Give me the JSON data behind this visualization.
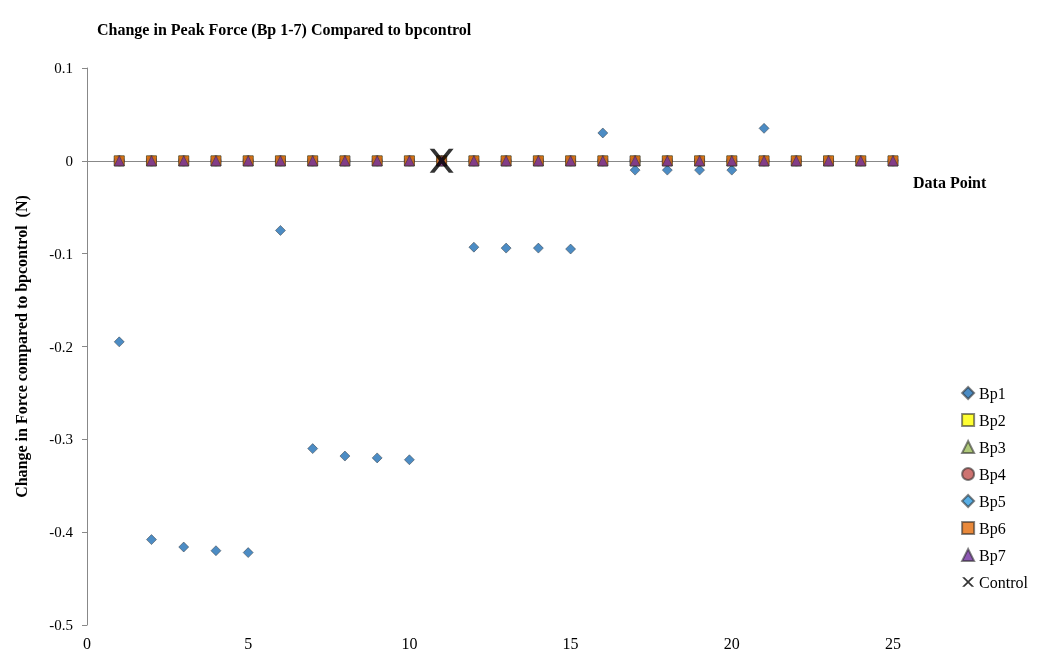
{
  "chart_data": {
    "type": "scatter",
    "title": "Change in Peak Force (Bp 1-7) Compared to bpcontrol",
    "xlabel": "Data Point",
    "ylabel": "Change in Force compared to bpcontrol  (N)",
    "x": [
      1,
      2,
      3,
      4,
      5,
      6,
      7,
      8,
      9,
      10,
      11,
      12,
      13,
      14,
      15,
      16,
      17,
      18,
      19,
      20,
      21,
      22,
      23,
      24,
      25
    ],
    "xlim": [
      0,
      25
    ],
    "xticks": [
      0,
      5,
      10,
      15,
      20,
      25
    ],
    "ylim": [
      -0.5,
      0.1
    ],
    "yticks": [
      0.1,
      0,
      -0.1,
      -0.2,
      -0.3,
      -0.4,
      -0.5
    ],
    "legend": "right",
    "series": [
      {
        "name": "Bp1",
        "color": "#1f6fb5",
        "marker": "diamond",
        "values": [
          -0.195,
          -0.408,
          -0.416,
          -0.42,
          -0.422,
          -0.075,
          -0.31,
          -0.318,
          -0.32,
          -0.322,
          null,
          -0.093,
          -0.094,
          -0.094,
          -0.095,
          0.03,
          -0.01,
          -0.01,
          -0.01,
          -0.01,
          0.035,
          null,
          null,
          null,
          null
        ]
      },
      {
        "name": "Bp2",
        "color": "#ffff00",
        "marker": "square",
        "values": [
          0,
          0,
          0,
          0,
          0,
          0,
          0,
          0,
          0,
          0,
          0,
          0,
          0,
          0,
          0,
          0,
          0,
          0,
          0,
          0,
          0,
          0,
          0,
          0,
          0
        ]
      },
      {
        "name": "Bp3",
        "color": "#9bbb59",
        "marker": "triangle",
        "values": [
          0,
          0,
          0,
          0,
          0,
          0,
          0,
          0,
          0,
          0,
          0,
          0,
          0,
          0,
          0,
          0,
          0,
          0,
          0,
          0,
          0,
          0,
          0,
          0,
          0
        ]
      },
      {
        "name": "Bp4",
        "color": "#c0504d",
        "marker": "circle",
        "values": [
          0,
          0,
          0,
          0,
          0,
          0,
          0,
          0,
          0,
          0,
          0,
          0,
          0,
          0,
          0,
          0,
          0,
          0,
          0,
          0,
          0,
          0,
          0,
          0,
          0
        ]
      },
      {
        "name": "Bp5",
        "color": "#2e9be0",
        "marker": "diamond",
        "values": [
          0,
          0,
          0,
          0,
          0,
          0,
          0,
          0,
          0,
          0,
          0,
          0,
          0,
          0,
          0,
          0,
          0,
          0,
          0,
          0,
          0,
          0,
          0,
          0,
          0
        ]
      },
      {
        "name": "Bp6",
        "color": "#e46c0a",
        "marker": "square",
        "values": [
          0,
          0,
          0,
          0,
          0,
          0,
          0,
          0,
          0,
          0,
          0,
          0,
          0,
          0,
          0,
          0,
          0,
          0,
          0,
          0,
          0,
          0,
          0,
          0,
          0
        ]
      },
      {
        "name": "Bp7",
        "color": "#7030a0",
        "marker": "triangle",
        "values": [
          0,
          0,
          0,
          0,
          0,
          0,
          0,
          0,
          0,
          0,
          0,
          0,
          0,
          0,
          0,
          0,
          0,
          0,
          0,
          0,
          0,
          0,
          0,
          0,
          0
        ]
      },
      {
        "name": "Control",
        "color": "#000000",
        "marker": "cross",
        "x": [
          11
        ],
        "values": [
          0
        ]
      }
    ]
  }
}
